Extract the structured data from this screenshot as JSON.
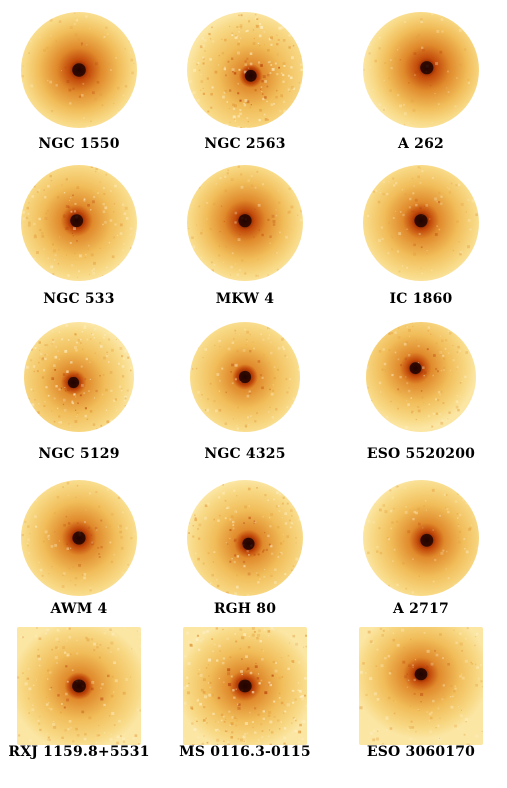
{
  "figure": {
    "panels": [
      {
        "label": "NGC 1550",
        "shape": "circle",
        "core": 0.95,
        "halo": 0.9,
        "noise": 0.25,
        "offx": 0.0,
        "offy": 0.0
      },
      {
        "label": "NGC 2563",
        "shape": "circle",
        "core": 0.7,
        "halo": 0.25,
        "noise": 0.9,
        "offx": 0.05,
        "offy": 0.05
      },
      {
        "label": "A 262",
        "shape": "circle",
        "core": 0.9,
        "halo": 0.95,
        "noise": 0.2,
        "offx": 0.05,
        "offy": -0.02
      },
      {
        "label": "NGC 533",
        "shape": "circle",
        "core": 0.85,
        "halo": 0.5,
        "noise": 0.55,
        "offx": -0.02,
        "offy": -0.02
      },
      {
        "label": "MKW 4",
        "shape": "circle",
        "core": 0.9,
        "halo": 0.8,
        "noise": 0.3,
        "offx": 0.0,
        "offy": -0.02
      },
      {
        "label": "IC 1860",
        "shape": "circle",
        "core": 0.9,
        "halo": 0.65,
        "noise": 0.35,
        "offx": 0.0,
        "offy": -0.02
      },
      {
        "label": "NGC 5129",
        "shape": "circle",
        "core": 0.7,
        "halo": 0.35,
        "noise": 0.8,
        "offx": -0.05,
        "offy": 0.05
      },
      {
        "label": "NGC 4325",
        "shape": "circle",
        "core": 0.85,
        "halo": 0.35,
        "noise": 0.45,
        "offx": 0.0,
        "offy": 0.0
      },
      {
        "label": "ESO 5520200",
        "shape": "circle",
        "core": 0.8,
        "halo": 0.55,
        "noise": 0.5,
        "offx": -0.05,
        "offy": -0.08
      },
      {
        "label": "AWM 4",
        "shape": "circle",
        "core": 0.9,
        "halo": 0.6,
        "noise": 0.35,
        "offx": 0.0,
        "offy": 0.0
      },
      {
        "label": "RGH 80",
        "shape": "circle",
        "core": 0.75,
        "halo": 0.4,
        "noise": 0.7,
        "offx": 0.03,
        "offy": 0.05
      },
      {
        "label": "A 2717",
        "shape": "circle",
        "core": 0.85,
        "halo": 0.6,
        "noise": 0.35,
        "offx": 0.05,
        "offy": 0.02
      },
      {
        "label": "RXJ 1159.8+5531",
        "shape": "square",
        "core": 0.85,
        "halo": 0.35,
        "noise": 0.55,
        "offx": 0.0,
        "offy": 0.0
      },
      {
        "label": "MS 0116.3-0115",
        "shape": "square",
        "core": 0.8,
        "halo": 0.45,
        "noise": 0.95,
        "offx": 0.0,
        "offy": 0.0
      },
      {
        "label": "ESO 3060170",
        "shape": "square",
        "core": 0.7,
        "halo": 0.55,
        "noise": 0.45,
        "offx": 0.0,
        "offy": -0.1
      }
    ]
  }
}
